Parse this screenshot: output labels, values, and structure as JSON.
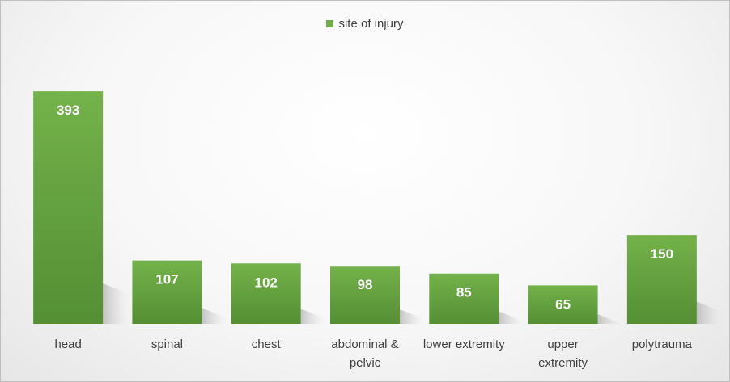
{
  "chart_data": {
    "type": "bar",
    "categories": [
      "head",
      "spinal",
      "chest",
      "abdominal & pelvic",
      "lower extremity",
      "upper extremity",
      "polytrauma"
    ],
    "category_lines": [
      [
        "head"
      ],
      [
        "spinal"
      ],
      [
        "chest"
      ],
      [
        "abdominal &",
        "pelvic"
      ],
      [
        "lower extremity"
      ],
      [
        "upper",
        "extremity"
      ],
      [
        "polytrauma"
      ]
    ],
    "series": [
      {
        "name": "site of injury",
        "values": [
          393,
          107,
          102,
          98,
          85,
          65,
          150
        ],
        "color": "#70ad47"
      }
    ],
    "data_labels": [
      "393",
      "107",
      "102",
      "98",
      "85",
      "65",
      "150"
    ],
    "ylim": [
      0,
      400
    ],
    "grid": false,
    "legend_position": "top"
  }
}
